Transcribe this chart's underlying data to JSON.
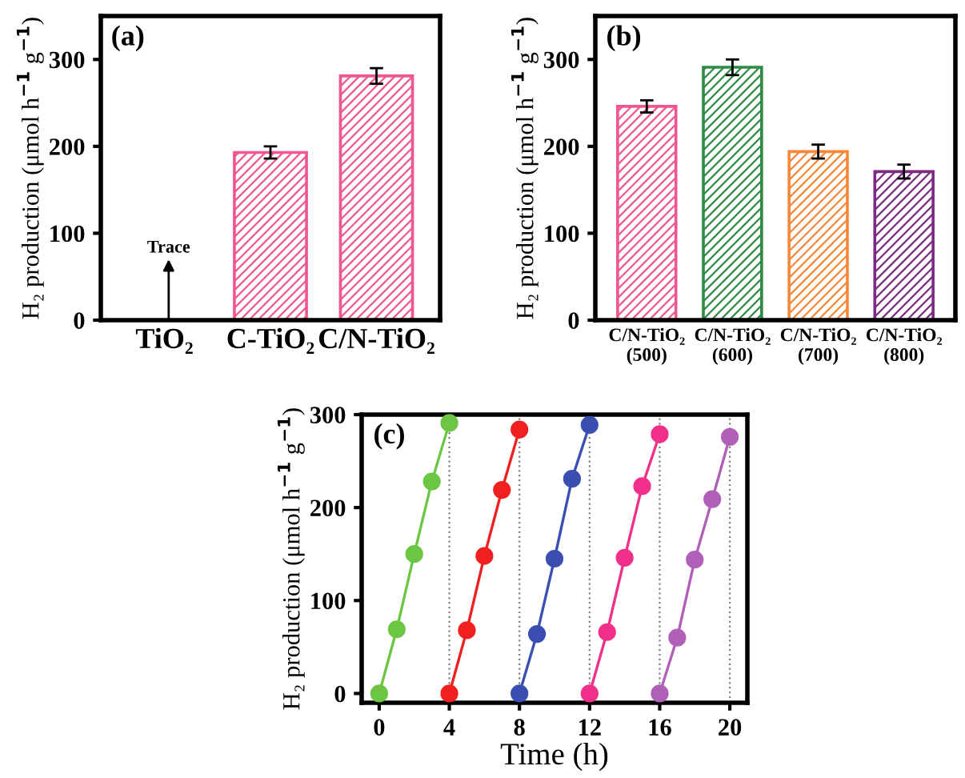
{
  "chart_data": [
    {
      "type": "bar",
      "title": "(a)",
      "ylabel": "H₂ production (μmol h$^{−1}$ g$^{−1}$)",
      "categories": [
        "TiO₂",
        "C-TiO₂",
        "C/N-TiO₂"
      ],
      "values": [
        null,
        193,
        281
      ],
      "errors": [
        null,
        7,
        9
      ],
      "colors": [
        "#f0568f",
        "#f0568f",
        "#f0568f"
      ],
      "ylim": [
        0,
        350
      ],
      "yticks": [
        0,
        100,
        200,
        300
      ],
      "grid": false,
      "legend": false,
      "annotations": [
        "Trace"
      ]
    },
    {
      "type": "bar",
      "title": "(b)",
      "ylabel": "H₂ production (μmol h$^{−1}$ g$^{−1}$)",
      "categories": [
        "C/N-TiO₂\n(500)",
        "C/N-TiO₂\n(600)",
        "C/N-TiO₂\n(700)",
        "C/N-TiO₂\n(800)"
      ],
      "values": [
        246,
        291,
        194,
        171
      ],
      "errors": [
        7,
        9,
        8,
        8
      ],
      "colors": [
        "#f0568f",
        "#2e8b45",
        "#f7883a",
        "#7b2a82"
      ],
      "ylim": [
        0,
        350
      ],
      "yticks": [
        0,
        100,
        200,
        300
      ],
      "grid": false,
      "legend": false
    },
    {
      "type": "line",
      "title": "(c)",
      "xlabel": "Time (h)",
      "ylabel": "H₂ production (μmol h$^{−1}$ g$^{−1}$)",
      "marker": "circle",
      "line_style": "solid",
      "grid": false,
      "legend": false,
      "series": [
        {
          "color": "#6cc644",
          "x": [
            0,
            1,
            2,
            3,
            4
          ],
          "values": [
            0,
            69,
            150,
            228,
            291
          ]
        },
        {
          "color": "#f02020",
          "x": [
            4,
            5,
            6,
            7,
            8
          ],
          "values": [
            0,
            68,
            148,
            219,
            284
          ]
        },
        {
          "color": "#3a4fb0",
          "x": [
            8,
            9,
            10,
            11,
            12
          ],
          "values": [
            0,
            64,
            145,
            231,
            289
          ]
        },
        {
          "color": "#f0308a",
          "x": [
            12,
            13,
            14,
            15,
            16
          ],
          "values": [
            0,
            66,
            146,
            223,
            279
          ]
        },
        {
          "color": "#b060b8",
          "x": [
            16,
            17,
            18,
            19,
            20
          ],
          "values": [
            0,
            60,
            144,
            209,
            276
          ]
        }
      ],
      "xlim": [
        -1,
        21
      ],
      "xticks": [
        0,
        4,
        8,
        12,
        16,
        20
      ],
      "ylim": [
        -10,
        300
      ],
      "yticks": [
        0,
        100,
        200,
        300
      ],
      "ref_lines": [
        {
          "axis": "x",
          "value": 4,
          "color": "#808080",
          "line_style": "dotted"
        },
        {
          "axis": "x",
          "value": 8,
          "color": "#808080",
          "line_style": "dotted"
        },
        {
          "axis": "x",
          "value": 12,
          "color": "#808080",
          "line_style": "dotted"
        },
        {
          "axis": "x",
          "value": 16,
          "color": "#808080",
          "line_style": "dotted"
        },
        {
          "axis": "x",
          "value": 20,
          "color": "#808080",
          "line_style": "dotted"
        }
      ]
    }
  ]
}
